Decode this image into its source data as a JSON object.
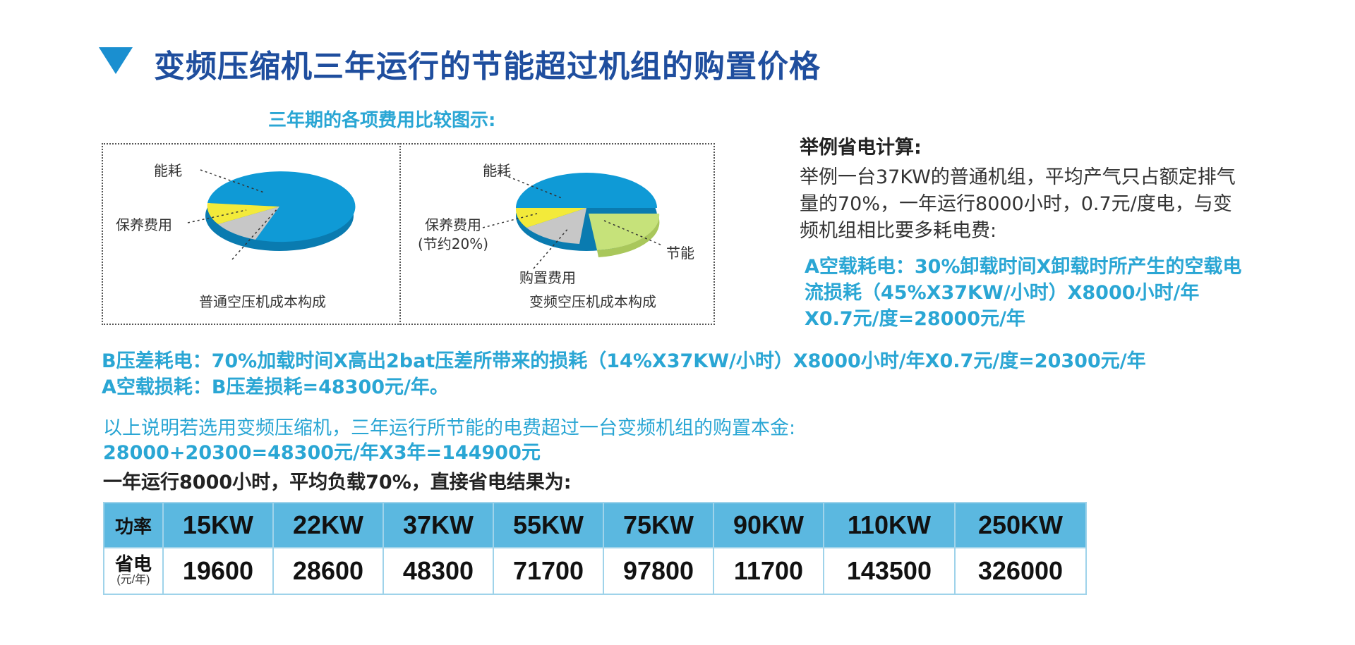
{
  "title": "变频压缩机三年运行的节能超过机组的购置价格",
  "chart_section": {
    "title": "三年期的各项费用比较图示:",
    "left_chart": {
      "caption": "普通空压机成本构成",
      "labels": {
        "energy": "能耗",
        "maintenance": "保养费用"
      }
    },
    "right_chart": {
      "caption": "变频空压机成本构成",
      "labels": {
        "energy": "能耗",
        "maintenance": "保养费用",
        "maintenance_note": "(节约20%)",
        "purchase": "购置费用",
        "saving": "节能"
      }
    }
  },
  "example": {
    "heading": "举例省电计算:",
    "paragraph": "举例一台37KW的普通机组，平均产气只占额定排气量的70%，一年运行8000小时，0.7元/度电，与变频机组相比要多耗电费:",
    "a_calc": "A空载耗电：30%卸载时间X卸载时所产生的空载电流损耗（45%X37KW/小时）X8000小时/年X0.7元/度=28000元/年"
  },
  "b_calc": "B压差耗电：70%加载时间X高出2bat压差所带来的损耗（14%X37KW/小时）X8000小时/年X0.7元/度=20300元/年",
  "a_b_total": "A空载损耗：B压差损耗=48300元/年。",
  "summary_line1": "以上说明若选用变频压缩机，三年运行所节能的电费超过一台变频机组的购置本金:",
  "summary_line2": "28000+20300=48300元/年X3年=144900元",
  "run_condition": "一年运行8000小时，平均负载70%，直接省电结果为:",
  "table": {
    "header_label": "功率",
    "row_label": "省电",
    "row_unit": "(元/年)",
    "powers": [
      "15KW",
      "22KW",
      "37KW",
      "55KW",
      "75KW",
      "90KW",
      "110KW",
      "250KW"
    ],
    "savings": [
      "19600",
      "28600",
      "48300",
      "71700",
      "97800",
      "11700",
      "143500",
      "326000"
    ]
  },
  "colors": {
    "title": "#1f4e9e",
    "accent": "#2aa6d4",
    "pie_blue": "#0f9ad6",
    "pie_yellow": "#f3ea3a",
    "pie_gray": "#c7c7c7",
    "pie_green": "#c6e27a",
    "table_header": "#5bb8e0"
  }
}
